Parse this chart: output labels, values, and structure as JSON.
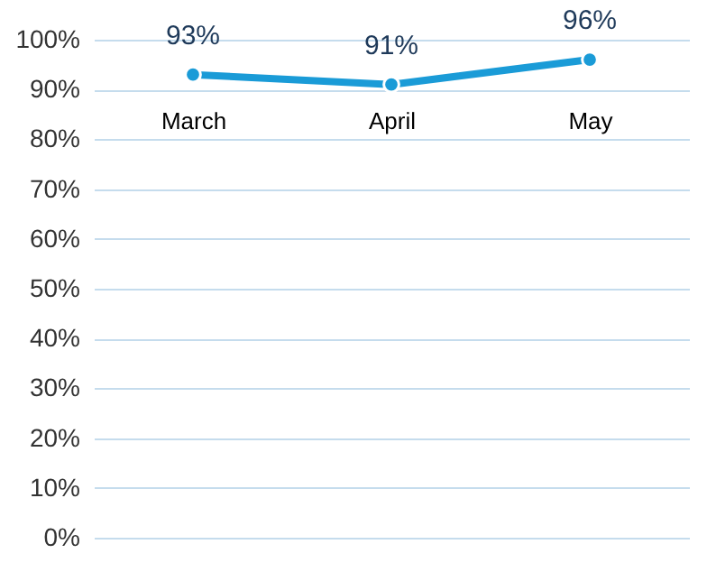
{
  "chart_data": {
    "type": "line",
    "categories": [
      "March",
      "April",
      "May"
    ],
    "series": [
      {
        "color": "#1a9bd7",
        "values": [
          93,
          91,
          96
        ]
      }
    ],
    "ylim": [
      0,
      100
    ],
    "yticks": [
      {
        "value": 0,
        "label": "0%"
      },
      {
        "value": 10,
        "label": "10%"
      },
      {
        "value": 20,
        "label": "20%"
      },
      {
        "value": 30,
        "label": "30%"
      },
      {
        "value": 40,
        "label": "40%"
      },
      {
        "value": 50,
        "label": "50%"
      },
      {
        "value": 60,
        "label": "60%"
      },
      {
        "value": 70,
        "label": "70%"
      },
      {
        "value": 80,
        "label": "80%"
      },
      {
        "value": 90,
        "label": "90%"
      },
      {
        "value": 100,
        "label": "100%"
      }
    ],
    "value_labels": [
      "93%",
      "91%",
      "96%"
    ],
    "grid": "y",
    "marker": "circle",
    "line_style": "solid"
  }
}
